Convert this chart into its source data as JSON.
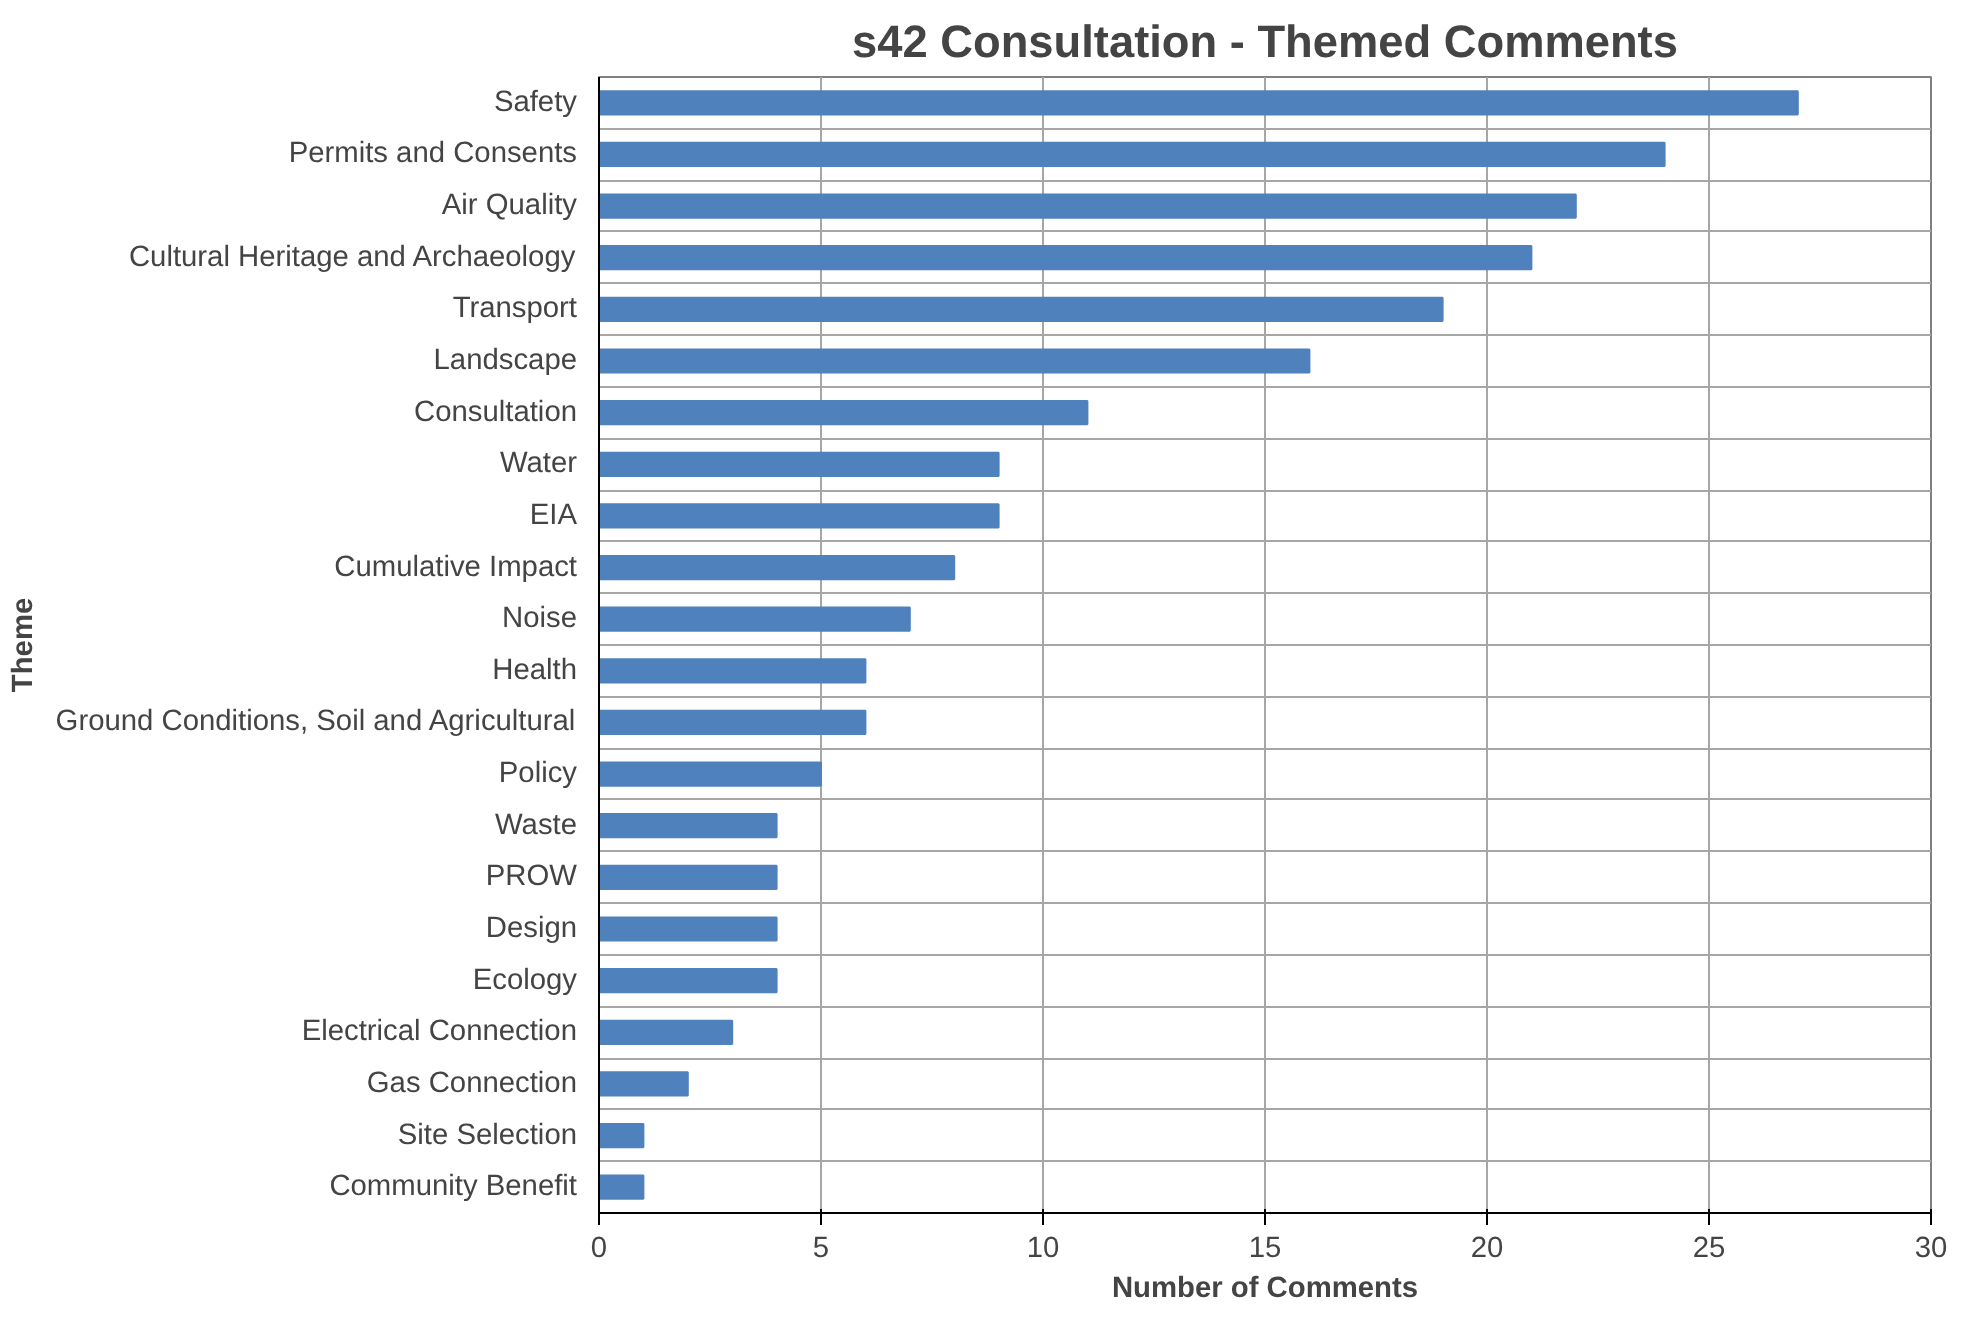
{
  "chart_data": {
    "type": "bar",
    "orientation": "horizontal",
    "title": "s42 Consultation - Themed Comments",
    "xlabel": "Number of Comments",
    "ylabel": "Theme",
    "categories": [
      "Safety",
      "Permits and Consents",
      "Air Quality",
      "Cultural Heritage and Archaeology",
      "Transport",
      "Landscape",
      "Consultation",
      "Water",
      "EIA",
      "Cumulative Impact",
      "Noise",
      "Health",
      "Ground Conditions, Soil and Agricultural",
      "Policy",
      "Waste",
      "PROW",
      "Design",
      "Ecology",
      "Electrical Connection",
      "Gas Connection",
      "Site Selection",
      "Community Benefit"
    ],
    "values": [
      27,
      24,
      22,
      21,
      19,
      16,
      11,
      9,
      9,
      8,
      7,
      6,
      6,
      5,
      4,
      4,
      4,
      4,
      3,
      2,
      1,
      1
    ],
    "color": "#4f81bd",
    "xlim": [
      0,
      30
    ],
    "xticks": [
      0,
      5,
      10,
      15,
      20,
      25,
      30
    ],
    "grid": true
  }
}
